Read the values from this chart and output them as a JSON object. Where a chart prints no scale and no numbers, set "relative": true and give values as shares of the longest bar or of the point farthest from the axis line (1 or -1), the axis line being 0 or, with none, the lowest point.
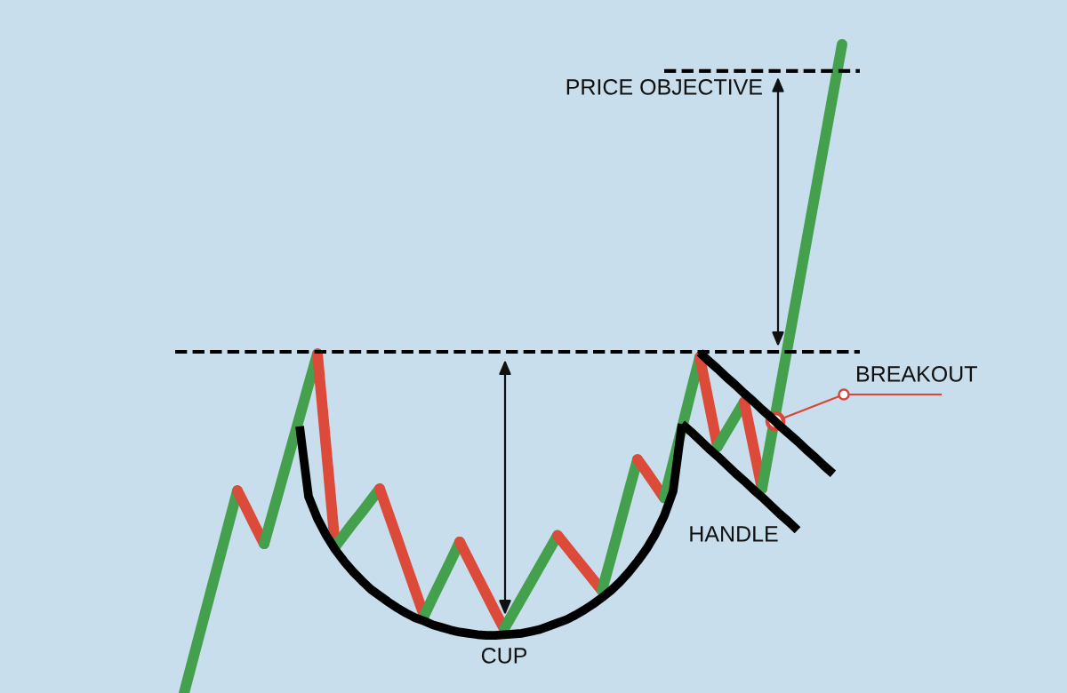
{
  "chart_data": {
    "type": "line",
    "relative": true,
    "tick_labels": false,
    "categories": [
      null,
      null,
      null,
      null,
      null,
      null,
      null,
      null,
      null,
      null,
      null,
      null,
      null,
      null,
      null,
      null,
      null,
      null,
      null,
      null,
      null,
      null,
      null,
      null,
      null,
      null,
      null,
      null,
      null,
      null,
      null,
      null,
      null,
      null,
      null,
      null,
      null,
      null,
      null,
      null,
      null,
      null,
      null,
      null,
      null,
      null,
      null,
      null,
      null,
      null,
      null,
      null,
      null,
      null,
      null,
      null,
      null,
      null,
      null,
      null,
      null,
      null,
      null,
      null,
      null,
      null,
      null,
      null,
      null,
      null,
      null,
      null,
      null,
      null,
      null,
      null,
      null,
      null
    ],
    "series": [
      {
        "color": "#45a04e",
        "values": [
          null,
          0,
          0.052,
          0.104,
          0.156,
          0.208,
          0.26,
          0.312,
          null,
          null,
          null,
          null,
          null,
          null,
          null,
          null,
          null,
          null,
          null,
          null,
          null,
          null,
          null,
          null,
          null,
          null,
          null,
          null,
          null,
          null,
          null,
          null,
          null,
          null,
          null,
          null,
          null,
          null,
          null,
          null,
          null,
          null,
          null,
          null,
          null,
          null,
          null,
          null,
          null,
          null,
          null,
          null,
          null,
          null,
          null,
          null,
          null,
          null,
          null,
          null,
          null,
          null,
          null,
          null,
          null,
          null,
          null,
          null,
          null,
          null,
          null,
          null,
          null,
          null,
          null,
          null,
          null,
          null
        ]
      },
      {
        "color": "#dc4a3a",
        "values": [
          null,
          null,
          null,
          null,
          null,
          null,
          null,
          0.312,
          0.285,
          0.257,
          0.23,
          null,
          null,
          null,
          null,
          null,
          null,
          null,
          null,
          null,
          null,
          null,
          null,
          null,
          null,
          null,
          null,
          null,
          null,
          null,
          null,
          null,
          null,
          null,
          null,
          null,
          null,
          null,
          null,
          null,
          null,
          null,
          null,
          null,
          null,
          null,
          null,
          null,
          null,
          null,
          null,
          null,
          null,
          null,
          null,
          null,
          null,
          null,
          null,
          null,
          null,
          null,
          null,
          null,
          null,
          null,
          null,
          null,
          null,
          null,
          null,
          null,
          null,
          null,
          null,
          null,
          null,
          null
        ]
      },
      {
        "color": "#45a04e",
        "values": [
          null,
          null,
          null,
          null,
          null,
          null,
          null,
          null,
          null,
          null,
          0.23,
          0.279,
          0.328,
          0.377,
          0.426,
          0.475,
          0.523,
          null,
          null,
          null,
          null,
          null,
          null,
          null,
          null,
          null,
          null,
          null,
          null,
          null,
          null,
          null,
          null,
          null,
          null,
          null,
          null,
          null,
          null,
          null,
          null,
          null,
          null,
          null,
          null,
          null,
          null,
          null,
          null,
          null,
          null,
          null,
          null,
          null,
          null,
          null,
          null,
          null,
          null,
          null,
          null,
          null,
          null,
          null,
          null,
          null,
          null,
          null,
          null,
          null,
          null,
          null,
          null,
          null,
          null,
          null,
          null,
          null
        ]
      },
      {
        "color": "#dc4a3a",
        "values": [
          null,
          null,
          null,
          null,
          null,
          null,
          null,
          null,
          null,
          null,
          null,
          null,
          null,
          null,
          null,
          null,
          0.523,
          0.375,
          0.226,
          null,
          null,
          null,
          null,
          null,
          null,
          null,
          null,
          null,
          null,
          null,
          null,
          null,
          null,
          null,
          null,
          null,
          null,
          null,
          null,
          null,
          null,
          null,
          null,
          null,
          null,
          null,
          null,
          null,
          null,
          null,
          null,
          null,
          null,
          null,
          null,
          null,
          null,
          null,
          null,
          null,
          null,
          null,
          null,
          null,
          null,
          null,
          null,
          null,
          null,
          null,
          null,
          null,
          null,
          null,
          null,
          null,
          null,
          null
        ]
      },
      {
        "color": "#45a04e",
        "values": [
          null,
          null,
          null,
          null,
          null,
          null,
          null,
          null,
          null,
          null,
          null,
          null,
          null,
          null,
          null,
          null,
          null,
          null,
          0.226,
          0.244,
          0.262,
          0.279,
          0.297,
          0.315,
          null,
          null,
          null,
          null,
          null,
          null,
          null,
          null,
          null,
          null,
          null,
          null,
          null,
          null,
          null,
          null,
          null,
          null,
          null,
          null,
          null,
          null,
          null,
          null,
          null,
          null,
          null,
          null,
          null,
          null,
          null,
          null,
          null,
          null,
          null,
          null,
          null,
          null,
          null,
          null,
          null,
          null,
          null,
          null,
          null,
          null,
          null,
          null,
          null,
          null,
          null,
          null,
          null,
          null
        ]
      },
      {
        "color": "#dc4a3a",
        "values": [
          null,
          null,
          null,
          null,
          null,
          null,
          null,
          null,
          null,
          null,
          null,
          null,
          null,
          null,
          null,
          null,
          null,
          null,
          null,
          null,
          null,
          null,
          null,
          0.315,
          0.276,
          0.237,
          0.197,
          0.158,
          0.119,
          null,
          null,
          null,
          null,
          null,
          null,
          null,
          null,
          null,
          null,
          null,
          null,
          null,
          null,
          null,
          null,
          null,
          null,
          null,
          null,
          null,
          null,
          null,
          null,
          null,
          null,
          null,
          null,
          null,
          null,
          null,
          null,
          null,
          null,
          null,
          null,
          null,
          null,
          null,
          null,
          null,
          null,
          null,
          null,
          null,
          null,
          null,
          null,
          null
        ]
      },
      {
        "color": "#45a04e",
        "values": [
          null,
          null,
          null,
          null,
          null,
          null,
          null,
          null,
          null,
          null,
          null,
          null,
          null,
          null,
          null,
          null,
          null,
          null,
          null,
          null,
          null,
          null,
          null,
          null,
          null,
          null,
          null,
          null,
          0.119,
          0.148,
          0.176,
          0.204,
          0.233,
          null,
          null,
          null,
          null,
          null,
          null,
          null,
          null,
          null,
          null,
          null,
          null,
          null,
          null,
          null,
          null,
          null,
          null,
          null,
          null,
          null,
          null,
          null,
          null,
          null,
          null,
          null,
          null,
          null,
          null,
          null,
          null,
          null,
          null,
          null,
          null,
          null,
          null,
          null,
          null,
          null,
          null,
          null,
          null,
          null
        ]
      },
      {
        "color": "#dc4a3a",
        "values": [
          null,
          null,
          null,
          null,
          null,
          null,
          null,
          null,
          null,
          null,
          null,
          null,
          null,
          null,
          null,
          null,
          null,
          null,
          null,
          null,
          null,
          null,
          null,
          null,
          null,
          null,
          null,
          null,
          null,
          null,
          null,
          null,
          0.233,
          0.206,
          0.179,
          0.152,
          0.125,
          0.099,
          null,
          null,
          null,
          null,
          null,
          null,
          null,
          null,
          null,
          null,
          null,
          null,
          null,
          null,
          null,
          null,
          null,
          null,
          null,
          null,
          null,
          null,
          null,
          null,
          null,
          null,
          null,
          null,
          null,
          null,
          null,
          null,
          null,
          null,
          null,
          null,
          null,
          null,
          null,
          null
        ]
      },
      {
        "color": "#45a04e",
        "values": [
          null,
          null,
          null,
          null,
          null,
          null,
          null,
          null,
          null,
          null,
          null,
          null,
          null,
          null,
          null,
          null,
          null,
          null,
          null,
          null,
          null,
          null,
          null,
          null,
          null,
          null,
          null,
          null,
          null,
          null,
          null,
          null,
          null,
          null,
          null,
          null,
          null,
          0.099,
          0.123,
          0.147,
          0.171,
          0.195,
          0.219,
          0.243,
          null,
          null,
          null,
          null,
          null,
          null,
          null,
          null,
          null,
          null,
          null,
          null,
          null,
          null,
          null,
          null,
          null,
          null,
          null,
          null,
          null,
          null,
          null,
          null,
          null,
          null,
          null,
          null,
          null,
          null,
          null,
          null,
          null,
          null
        ]
      },
      {
        "color": "#dc4a3a",
        "values": [
          null,
          null,
          null,
          null,
          null,
          null,
          null,
          null,
          null,
          null,
          null,
          null,
          null,
          null,
          null,
          null,
          null,
          null,
          null,
          null,
          null,
          null,
          null,
          null,
          null,
          null,
          null,
          null,
          null,
          null,
          null,
          null,
          null,
          null,
          null,
          null,
          null,
          null,
          null,
          null,
          null,
          null,
          null,
          0.243,
          0.226,
          0.209,
          0.192,
          0.175,
          0.158,
          null,
          null,
          null,
          null,
          null,
          null,
          null,
          null,
          null,
          null,
          null,
          null,
          null,
          null,
          null,
          null,
          null,
          null,
          null,
          null,
          null,
          null,
          null,
          null,
          null,
          null,
          null,
          null,
          null
        ]
      },
      {
        "color": "#45a04e",
        "values": [
          null,
          null,
          null,
          null,
          null,
          null,
          null,
          null,
          null,
          null,
          null,
          null,
          null,
          null,
          null,
          null,
          null,
          null,
          null,
          null,
          null,
          null,
          null,
          null,
          null,
          null,
          null,
          null,
          null,
          null,
          null,
          null,
          null,
          null,
          null,
          null,
          null,
          null,
          null,
          null,
          null,
          null,
          null,
          null,
          null,
          null,
          null,
          null,
          0.158,
          0.208,
          0.259,
          0.31,
          0.36,
          null,
          null,
          null,
          null,
          null,
          null,
          null,
          null,
          null,
          null,
          null,
          null,
          null,
          null,
          null,
          null,
          null,
          null,
          null,
          null,
          null,
          null,
          null,
          null,
          null
        ]
      },
      {
        "color": "#dc4a3a",
        "values": [
          null,
          null,
          null,
          null,
          null,
          null,
          null,
          null,
          null,
          null,
          null,
          null,
          null,
          null,
          null,
          null,
          null,
          null,
          null,
          null,
          null,
          null,
          null,
          null,
          null,
          null,
          null,
          null,
          null,
          null,
          null,
          null,
          null,
          null,
          null,
          null,
          null,
          null,
          null,
          null,
          null,
          null,
          null,
          null,
          null,
          null,
          null,
          null,
          null,
          null,
          null,
          null,
          0.36,
          0.341,
          0.321,
          0.301,
          null,
          null,
          null,
          null,
          null,
          null,
          null,
          null,
          null,
          null,
          null,
          null,
          null,
          null,
          null,
          null,
          null,
          null,
          null,
          null,
          null,
          null
        ]
      },
      {
        "color": "#45a04e",
        "values": [
          null,
          null,
          null,
          null,
          null,
          null,
          null,
          null,
          null,
          null,
          null,
          null,
          null,
          null,
          null,
          null,
          null,
          null,
          null,
          null,
          null,
          null,
          null,
          null,
          null,
          null,
          null,
          null,
          null,
          null,
          null,
          null,
          null,
          null,
          null,
          null,
          null,
          null,
          null,
          null,
          null,
          null,
          null,
          null,
          null,
          null,
          null,
          null,
          null,
          null,
          null,
          null,
          null,
          null,
          null,
          0.301,
          0.355,
          0.409,
          0.464,
          0.518,
          null,
          null,
          null,
          null,
          null,
          null,
          null,
          null,
          null,
          null,
          null,
          null,
          null,
          null,
          null,
          null,
          null,
          null
        ]
      },
      {
        "color": "#dc4a3a",
        "values": [
          null,
          null,
          null,
          null,
          null,
          null,
          null,
          null,
          null,
          null,
          null,
          null,
          null,
          null,
          null,
          null,
          null,
          null,
          null,
          null,
          null,
          null,
          null,
          null,
          null,
          null,
          null,
          null,
          null,
          null,
          null,
          null,
          null,
          null,
          null,
          null,
          null,
          null,
          null,
          null,
          null,
          null,
          null,
          null,
          null,
          null,
          null,
          null,
          null,
          null,
          null,
          null,
          null,
          null,
          null,
          null,
          null,
          null,
          null,
          0.518,
          0.449,
          0.38,
          null,
          null,
          null,
          null,
          null,
          null,
          null,
          null,
          null,
          null,
          null,
          null,
          null,
          null,
          null,
          null
        ]
      },
      {
        "color": "#45a04e",
        "values": [
          null,
          null,
          null,
          null,
          null,
          null,
          null,
          null,
          null,
          null,
          null,
          null,
          null,
          null,
          null,
          null,
          null,
          null,
          null,
          null,
          null,
          null,
          null,
          null,
          null,
          null,
          null,
          null,
          null,
          null,
          null,
          null,
          null,
          null,
          null,
          null,
          null,
          null,
          null,
          null,
          null,
          null,
          null,
          null,
          null,
          null,
          null,
          null,
          null,
          null,
          null,
          null,
          null,
          null,
          null,
          null,
          null,
          null,
          null,
          null,
          null,
          0.38,
          0.403,
          0.426,
          0.449,
          null,
          null,
          null,
          null,
          null,
          null,
          null,
          null,
          null,
          null,
          null,
          null,
          null
        ]
      },
      {
        "color": "#dc4a3a",
        "values": [
          null,
          null,
          null,
          null,
          null,
          null,
          null,
          null,
          null,
          null,
          null,
          null,
          null,
          null,
          null,
          null,
          null,
          null,
          null,
          null,
          null,
          null,
          null,
          null,
          null,
          null,
          null,
          null,
          null,
          null,
          null,
          null,
          null,
          null,
          null,
          null,
          null,
          null,
          null,
          null,
          null,
          null,
          null,
          null,
          null,
          null,
          null,
          null,
          null,
          null,
          null,
          null,
          null,
          null,
          null,
          null,
          null,
          null,
          null,
          null,
          null,
          null,
          null,
          null,
          0.449,
          0.382,
          0.315,
          null,
          null,
          null,
          null,
          null,
          null,
          null,
          null,
          null,
          null,
          null
        ]
      },
      {
        "color": "#45a04e",
        "values": [
          null,
          null,
          null,
          null,
          null,
          null,
          null,
          null,
          null,
          null,
          null,
          null,
          null,
          null,
          null,
          null,
          null,
          null,
          null,
          null,
          null,
          null,
          null,
          null,
          null,
          null,
          null,
          null,
          null,
          null,
          null,
          null,
          null,
          null,
          null,
          null,
          null,
          null,
          null,
          null,
          null,
          null,
          null,
          null,
          null,
          null,
          null,
          null,
          null,
          null,
          null,
          null,
          null,
          null,
          null,
          null,
          null,
          null,
          null,
          null,
          null,
          null,
          null,
          null,
          null,
          null,
          0.315,
          0.391,
          0.467,
          0.543,
          0.619,
          0.696,
          0.772,
          0.848,
          0.924,
          1,
          null,
          null
        ]
      },
      {
        "color": "#000000",
        "values": [
          null,
          null,
          null,
          null,
          null,
          null,
          null,
          null,
          null,
          null,
          null,
          null,
          null,
          null,
          0.411,
          0.303,
          0.269,
          0.243,
          0.221,
          0.203,
          0.187,
          0.173,
          0.16,
          0.15,
          0.14,
          0.131,
          0.123,
          0.116,
          0.111,
          0.105,
          0.101,
          0.097,
          0.094,
          0.092,
          0.09,
          0.089,
          0.089,
          0.09,
          0.091,
          0.092,
          0.095,
          0.098,
          0.103,
          0.108,
          0.113,
          0.12,
          0.128,
          0.137,
          0.147,
          0.158,
          0.171,
          0.186,
          0.203,
          0.222,
          0.245,
          0.273,
          0.311,
          0.415,
          null,
          null,
          null,
          null,
          null,
          null,
          null,
          null,
          null,
          null,
          null,
          null,
          null,
          null,
          null,
          null,
          null,
          null,
          null,
          null
        ]
      },
      {
        "color": "#000000",
        "values": [
          null,
          null,
          null,
          null,
          null,
          null,
          null,
          null,
          null,
          null,
          null,
          null,
          null,
          null,
          null,
          null,
          null,
          null,
          null,
          null,
          null,
          null,
          null,
          null,
          null,
          null,
          null,
          null,
          null,
          null,
          null,
          null,
          null,
          null,
          null,
          null,
          null,
          null,
          null,
          null,
          null,
          null,
          null,
          null,
          null,
          null,
          null,
          null,
          null,
          null,
          null,
          null,
          null,
          null,
          null,
          null,
          null,
          null,
          null,
          0.525,
          0.512,
          0.5,
          0.487,
          0.475,
          0.462,
          0.45,
          0.437,
          0.425,
          0.412,
          0.4,
          0.388,
          0.375,
          0.363,
          0.35,
          0.338,
          null,
          null,
          null
        ]
      },
      {
        "color": "#000000",
        "values": [
          null,
          null,
          null,
          null,
          null,
          null,
          null,
          null,
          null,
          null,
          null,
          null,
          null,
          null,
          null,
          null,
          null,
          null,
          null,
          null,
          null,
          null,
          null,
          null,
          null,
          null,
          null,
          null,
          null,
          null,
          null,
          null,
          null,
          null,
          null,
          null,
          null,
          null,
          null,
          null,
          null,
          null,
          null,
          null,
          null,
          null,
          null,
          null,
          null,
          null,
          null,
          null,
          null,
          null,
          null,
          null,
          null,
          0.415,
          0.403,
          0.39,
          0.377,
          0.365,
          0.352,
          0.339,
          0.327,
          0.314,
          0.302,
          0.289,
          0.276,
          0.264,
          0.251,
          null,
          null,
          null,
          null,
          null,
          null,
          null
        ]
      },
      {
        "color": "#000000",
        "line_style": "dashed",
        "values": [
          null,
          null,
          null,
          null,
          null,
          null,
          null,
          null,
          null,
          null,
          null,
          null,
          null,
          null,
          null,
          null,
          null,
          null,
          null,
          null,
          null,
          null,
          null,
          null,
          null,
          null,
          null,
          null,
          null,
          null,
          null,
          null,
          null,
          null,
          null,
          null,
          null,
          null,
          null,
          null,
          null,
          null,
          null,
          null,
          null,
          null,
          null,
          null,
          null,
          null,
          null,
          null,
          null,
          null,
          null,
          0.959,
          0.959,
          0.959,
          0.959,
          0.959,
          0.959,
          0.959,
          0.959,
          0.959,
          0.959,
          0.959,
          0.959,
          0.959,
          0.959,
          0.959,
          0.959,
          0.959,
          0.959,
          0.959,
          0.959,
          0.959,
          0.959,
          0.959
        ]
      }
    ],
    "ref_lines": [
      {
        "axis": "y",
        "value": 0.526,
        "color": "#000000",
        "line_style": "dashed"
      }
    ],
    "annotations": [
      "PRICE OBJECTIVE",
      "BREAKOUT",
      "HANDLE",
      "CUP"
    ]
  }
}
